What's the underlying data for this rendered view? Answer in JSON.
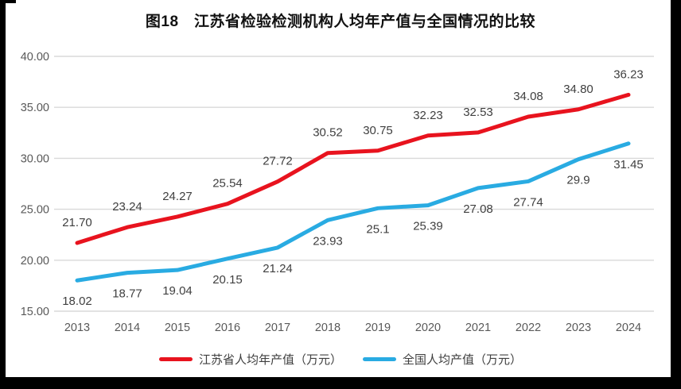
{
  "chart_data": {
    "type": "line",
    "title": "图18　江苏省检验检测机构人均年产值与全国情况的比较",
    "categories": [
      "2013",
      "2014",
      "2015",
      "2016",
      "2017",
      "2018",
      "2019",
      "2020",
      "2021",
      "2022",
      "2023",
      "2024"
    ],
    "series": [
      {
        "name": "江苏省人均年产值（万元）",
        "color": "#e8131e",
        "values": [
          "21.70",
          "23.24",
          "24.27",
          "25.54",
          "27.72",
          "30.52",
          "30.75",
          "32.23",
          "32.53",
          "34.08",
          "34.80",
          "36.23"
        ],
        "label_position": "above"
      },
      {
        "name": "全国人均产值（万元）",
        "color": "#29abe2",
        "values": [
          "18.02",
          "18.77",
          "19.04",
          "20.15",
          "21.24",
          "23.93",
          "25.1",
          "25.39",
          "27.08",
          "27.74",
          "29.9",
          "31.45"
        ],
        "label_position": "below"
      }
    ],
    "y_ticks": [
      "15.00",
      "20.00",
      "25.00",
      "30.00",
      "35.00",
      "40.00"
    ],
    "ylim": [
      15,
      40
    ],
    "grid": true,
    "legend_position": "bottom",
    "colors": {
      "gridline": "#d9d9d9",
      "axis_text": "#595959",
      "data_label": "#3f3f3f"
    }
  }
}
